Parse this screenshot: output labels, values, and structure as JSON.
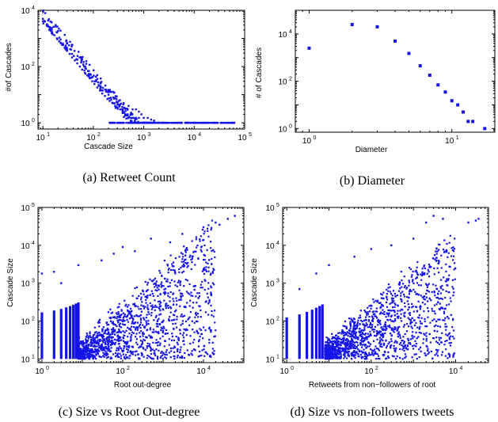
{
  "chart_data": [
    {
      "type": "scatter",
      "xlabel": "Cascade Size",
      "ylabel": "#of Cascades",
      "caption": "(a) Retweet Count",
      "xscale": "log",
      "yscale": "log",
      "xlim": [
        8,
        100000
      ],
      "ylim": [
        0.6,
        10000
      ],
      "xticks": [
        "10^1",
        "10^2",
        "10^3",
        "10^4",
        "10^5"
      ],
      "yticks": [
        "10^0",
        "10^2",
        "10^4"
      ],
      "points": [
        [
          10,
          5000
        ],
        [
          11,
          4000
        ],
        [
          12,
          3200
        ],
        [
          13,
          2600
        ],
        [
          14,
          2100
        ],
        [
          15,
          1700
        ],
        [
          17,
          1300
        ],
        [
          19,
          1000
        ],
        [
          21,
          780
        ],
        [
          24,
          600
        ],
        [
          27,
          460
        ],
        [
          30,
          360
        ],
        [
          34,
          280
        ],
        [
          38,
          210
        ],
        [
          43,
          165
        ],
        [
          48,
          130
        ],
        [
          54,
          100
        ],
        [
          60,
          78
        ],
        [
          68,
          60
        ],
        [
          76,
          48
        ],
        [
          85,
          38
        ],
        [
          95,
          30
        ],
        [
          105,
          24
        ],
        [
          120,
          18
        ],
        [
          135,
          14
        ],
        [
          150,
          11
        ],
        [
          170,
          9
        ],
        [
          190,
          7
        ],
        [
          210,
          6
        ],
        [
          240,
          5
        ],
        [
          270,
          4
        ],
        [
          300,
          3.5
        ],
        [
          340,
          3
        ],
        [
          380,
          2.5
        ],
        [
          430,
          2
        ],
        [
          480,
          2
        ],
        [
          550,
          2
        ],
        [
          620,
          1.5
        ],
        [
          700,
          1.5
        ],
        [
          800,
          1.5
        ],
        [
          900,
          2
        ],
        [
          1000,
          1.5
        ],
        [
          1200,
          1.5
        ],
        [
          1400,
          1.3
        ],
        [
          1600,
          1.2
        ],
        [
          220,
          1
        ],
        [
          300,
          1
        ],
        [
          400,
          1
        ],
        [
          550,
          1
        ],
        [
          750,
          1
        ],
        [
          1000,
          1
        ],
        [
          1300,
          1
        ],
        [
          1700,
          1
        ],
        [
          2300,
          1
        ],
        [
          3000,
          1
        ],
        [
          4000,
          1
        ],
        [
          5500,
          1
        ],
        [
          7500,
          1
        ],
        [
          10000,
          1
        ],
        [
          14000,
          1
        ],
        [
          20000,
          1
        ],
        [
          28000,
          1
        ],
        [
          40000,
          1
        ],
        [
          55000,
          1
        ],
        [
          200,
          10
        ],
        [
          250,
          8
        ],
        [
          320,
          6
        ],
        [
          400,
          5
        ],
        [
          500,
          4
        ],
        [
          600,
          3
        ],
        [
          700,
          3
        ],
        [
          800,
          2.5
        ],
        [
          260,
          12
        ],
        [
          180,
          15
        ],
        [
          140,
          20
        ],
        [
          110,
          30
        ],
        [
          90,
          40
        ],
        [
          70,
          55
        ]
      ]
    },
    {
      "type": "scatter",
      "xlabel": "Diameter",
      "ylabel": "# of Cascades",
      "caption": "(b) Diameter",
      "xscale": "log",
      "yscale": "log",
      "xlim": [
        0.8,
        20
      ],
      "ylim": [
        0.7,
        100000
      ],
      "xticks": [
        "10^0",
        "10^1"
      ],
      "yticks": [
        "10^0",
        "10^2",
        "10^4"
      ],
      "points": [
        [
          1,
          2500
        ],
        [
          2,
          25000
        ],
        [
          3,
          20000
        ],
        [
          4,
          5000
        ],
        [
          5,
          1500
        ],
        [
          6,
          450
        ],
        [
          7,
          180
        ],
        [
          8,
          70
        ],
        [
          9,
          35
        ],
        [
          10,
          15
        ],
        [
          11,
          10
        ],
        [
          12,
          5
        ],
        [
          13,
          2
        ],
        [
          14,
          2
        ],
        [
          17,
          1
        ]
      ]
    },
    {
      "type": "scatter",
      "xlabel": "Root out-degree",
      "ylabel": "Cascade Size",
      "caption": "(c) Size vs Root Out-degree",
      "xscale": "log",
      "yscale": "log",
      "xlim": [
        0.8,
        100000
      ],
      "ylim": [
        8,
        100000
      ],
      "xticks": [
        "10^0",
        "10^2",
        "10^4"
      ],
      "yticks": [
        "10^1",
        "10^2",
        "10^3",
        "10^4",
        "10^5"
      ],
      "columns": [
        1,
        2,
        3,
        4,
        5,
        6,
        7,
        8
      ],
      "outliers": [
        [
          1,
          1800
        ],
        [
          2,
          2000
        ],
        [
          3,
          1000
        ],
        [
          8,
          3000
        ],
        [
          30,
          4000
        ],
        [
          60,
          6000
        ],
        [
          100,
          9000
        ],
        [
          200,
          7000
        ],
        [
          500,
          15000
        ],
        [
          1500,
          12000
        ],
        [
          3000,
          20000
        ],
        [
          20000,
          40000
        ],
        [
          25000,
          35000
        ],
        [
          40000,
          50000
        ],
        [
          60000,
          60000
        ],
        [
          10000,
          30000
        ]
      ]
    },
    {
      "type": "scatter",
      "xlabel": "Retweets from non−followers of root",
      "ylabel": "Cascade Size",
      "caption": "(d) Size vs non-followers tweets",
      "xscale": "log",
      "yscale": "log",
      "xlim": [
        0.8,
        60000
      ],
      "ylim": [
        8,
        100000
      ],
      "xticks": [
        "10^0",
        "10^2",
        "10^4"
      ],
      "yticks": [
        "10^1",
        "10^2",
        "10^3",
        "10^4",
        "10^5"
      ],
      "columns": [
        1,
        2,
        3,
        4,
        5,
        6,
        7
      ],
      "outliers": [
        [
          2,
          700
        ],
        [
          5,
          1800
        ],
        [
          10,
          3000
        ],
        [
          40,
          5000
        ],
        [
          100,
          8000
        ],
        [
          300,
          10000
        ],
        [
          1000,
          15000
        ],
        [
          2000,
          40000
        ],
        [
          3000,
          60000
        ],
        [
          5000,
          50000
        ],
        [
          30000,
          45000
        ],
        [
          35000,
          50000
        ],
        [
          20000,
          40000
        ]
      ]
    }
  ]
}
